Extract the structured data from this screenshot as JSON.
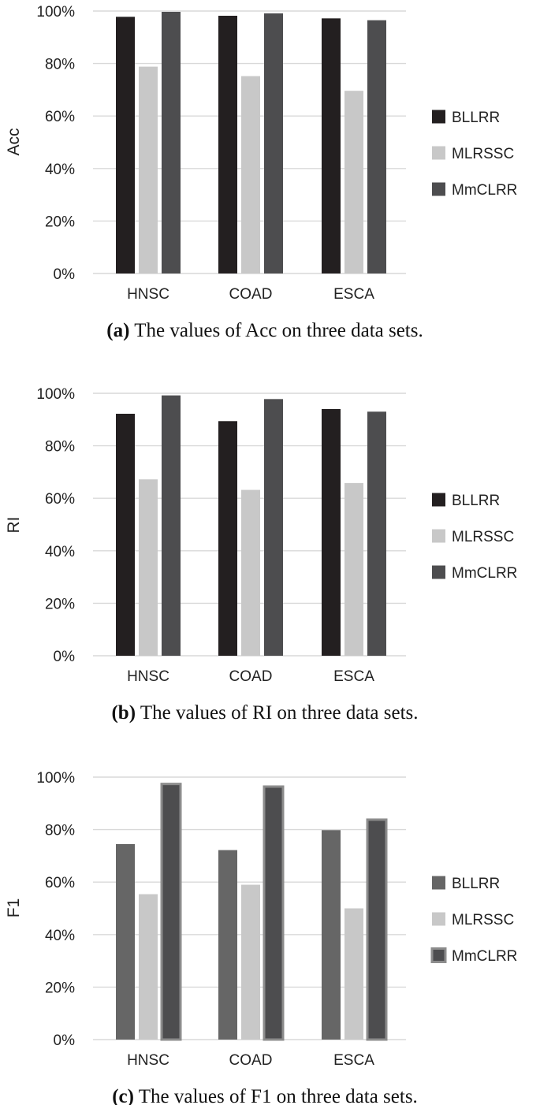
{
  "chart_data": [
    {
      "type": "bar",
      "ylabel": "Acc",
      "xlabel": "",
      "ylim": [
        0,
        100
      ],
      "yticks": [
        "0%",
        "20%",
        "40%",
        "60%",
        "80%",
        "100%"
      ],
      "grid": true,
      "legend_position": "right",
      "categories": [
        "HNSC",
        "COAD",
        "ESCA"
      ],
      "series": [
        {
          "name": "BLLRR",
          "values": [
            97.8,
            98.2,
            97.2
          ],
          "color": "#231f20"
        },
        {
          "name": "MLRSSC",
          "values": [
            78.8,
            75.2,
            69.6
          ],
          "color": "#c8c8c8"
        },
        {
          "name": "MmCLRR",
          "values": [
            99.7,
            99.1,
            96.5
          ],
          "color": "#4d4d4f"
        }
      ],
      "caption_label": "(a)",
      "caption_text": " The values of Acc on three data sets."
    },
    {
      "type": "bar",
      "ylabel": "RI",
      "xlabel": "",
      "ylim": [
        0,
        100
      ],
      "yticks": [
        "0%",
        "20%",
        "40%",
        "60%",
        "80%",
        "100%"
      ],
      "grid": true,
      "legend_position": "right",
      "categories": [
        "HNSC",
        "COAD",
        "ESCA"
      ],
      "series": [
        {
          "name": "BLLRR",
          "values": [
            92.2,
            89.4,
            94.0
          ],
          "color": "#231f20"
        },
        {
          "name": "MLRSSC",
          "values": [
            67.2,
            63.2,
            65.8
          ],
          "color": "#c8c8c8"
        },
        {
          "name": "MmCLRR",
          "values": [
            99.2,
            97.8,
            93.0
          ],
          "color": "#4d4d4f"
        }
      ],
      "caption_label": "(b)",
      "caption_text": "  The values of RI on three data sets."
    },
    {
      "type": "bar",
      "ylabel": "F1",
      "xlabel": "",
      "ylim": [
        0,
        100
      ],
      "yticks": [
        "0%",
        "20%",
        "40%",
        "60%",
        "80%",
        "100%"
      ],
      "grid": true,
      "legend_position": "right",
      "categories": [
        "HNSC",
        "COAD",
        "ESCA"
      ],
      "series": [
        {
          "name": "BLLRR",
          "values": [
            74.5,
            72.2,
            79.8
          ],
          "color": "#666666"
        },
        {
          "name": "MLRSSC",
          "values": [
            55.4,
            59.0,
            50.0
          ],
          "color": "#c8c8c8"
        },
        {
          "name": "MmCLRR",
          "values": [
            97.4,
            96.4,
            83.8
          ],
          "color": "#4d4d4f",
          "border": "#8c8c8c"
        }
      ],
      "caption_label": "(c)",
      "caption_text": " The values of F1 on three data sets."
    }
  ]
}
